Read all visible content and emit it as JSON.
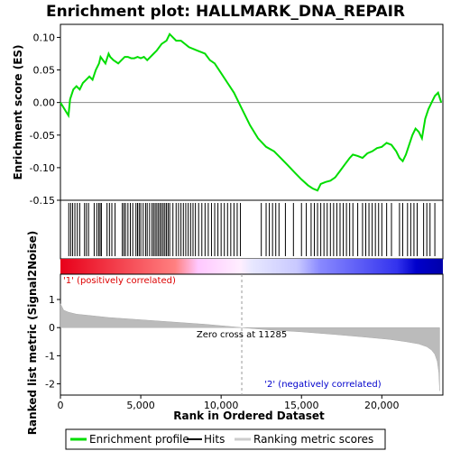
{
  "chart_data": {
    "type": "line",
    "title": "Enrichment plot: HALLMARK_DNA_REPAIR",
    "top_panel": {
      "ylabel": "Enrichment score (ES)",
      "ylim": [
        -0.15,
        0.12
      ],
      "yticks": [
        0.1,
        0.05,
        0.0,
        -0.05,
        -0.1,
        -0.15
      ],
      "ytick_labels": [
        "0.10",
        "0.05",
        "0.00",
        "-0.05",
        "-0.10",
        "-0.15"
      ],
      "series": [
        {
          "name": "Enrichment profile",
          "color": "#00dd00",
          "x": [
            0,
            500,
            600,
            800,
            1000,
            1200,
            1400,
            1600,
            1800,
            2000,
            2200,
            2400,
            2500,
            2800,
            3000,
            3100,
            3300,
            3600,
            3800,
            4000,
            4200,
            4400,
            4600,
            4800,
            5000,
            5200,
            5400,
            5600,
            5800,
            6000,
            6300,
            6600,
            6800,
            7000,
            7200,
            7500,
            8000,
            8500,
            9000,
            9300,
            9600,
            10000,
            10400,
            10800,
            11300,
            11800,
            12300,
            12800,
            13300,
            13700,
            14100,
            14600,
            15000,
            15400,
            15700,
            16000,
            16200,
            16500,
            16800,
            17100,
            17400,
            17700,
            18000,
            18200,
            18500,
            18800,
            19100,
            19400,
            19700,
            20000,
            20300,
            20600,
            20900,
            21100,
            21300,
            21500,
            21700,
            21900,
            22100,
            22300,
            22500,
            22700,
            22900,
            23100,
            23300,
            23500,
            23700
          ],
          "y": [
            0.0,
            -0.02,
            0.005,
            0.02,
            0.025,
            0.02,
            0.03,
            0.035,
            0.04,
            0.035,
            0.05,
            0.06,
            0.07,
            0.06,
            0.075,
            0.07,
            0.065,
            0.06,
            0.065,
            0.07,
            0.07,
            0.068,
            0.068,
            0.07,
            0.068,
            0.07,
            0.065,
            0.07,
            0.075,
            0.08,
            0.09,
            0.095,
            0.105,
            0.1,
            0.095,
            0.095,
            0.085,
            0.08,
            0.075,
            0.065,
            0.06,
            0.045,
            0.03,
            0.015,
            -0.01,
            -0.035,
            -0.055,
            -0.068,
            -0.075,
            -0.085,
            -0.095,
            -0.108,
            -0.118,
            -0.127,
            -0.132,
            -0.135,
            -0.125,
            -0.122,
            -0.12,
            -0.115,
            -0.105,
            -0.095,
            -0.085,
            -0.08,
            -0.082,
            -0.085,
            -0.078,
            -0.075,
            -0.07,
            -0.068,
            -0.062,
            -0.065,
            -0.075,
            -0.085,
            -0.09,
            -0.08,
            -0.065,
            -0.05,
            -0.04,
            -0.045,
            -0.055,
            -0.025,
            -0.01,
            0.0,
            0.01,
            0.015,
            0.0
          ]
        }
      ]
    },
    "hits_panel": {
      "series_name": "Hits",
      "x": [
        520,
        640,
        760,
        900,
        1050,
        1200,
        1500,
        1620,
        1750,
        2100,
        2260,
        2380,
        2470,
        2550,
        2900,
        3050,
        3200,
        3400,
        3850,
        3950,
        4050,
        4200,
        4350,
        4500,
        4700,
        4800,
        4900,
        5000,
        5150,
        5300,
        5400,
        5550,
        5700,
        5800,
        5900,
        6000,
        6100,
        6200,
        6300,
        6400,
        6500,
        6600,
        6700,
        6800,
        7000,
        7200,
        7350,
        7500,
        7650,
        7800,
        7950,
        8100,
        8250,
        8400,
        8600,
        8800,
        9000,
        9200,
        9400,
        9600,
        9800,
        10000,
        10200,
        10400,
        10600,
        10800,
        11000,
        11200,
        12500,
        12800,
        13000,
        13200,
        13400,
        13600,
        14000,
        14500,
        15000,
        15300,
        15600,
        15800,
        16000,
        16200,
        16400,
        16600,
        16800,
        17000,
        17200,
        17400,
        17600,
        17800,
        18000,
        18200,
        18500,
        18800,
        19000,
        19200,
        19400,
        19600,
        19800,
        20000,
        20300,
        20600,
        21100,
        21300,
        21600,
        21800,
        22000,
        22200,
        22600,
        22800,
        23000,
        23300
      ]
    },
    "ranking_bar": {
      "colors_positive": "#ff0000",
      "colors_negative": "#0000ff",
      "zero_cross": 11285
    },
    "bottom_panel": {
      "ylabel": "Ranked list metric (Signal2Noise)",
      "xlabel": "Rank in Ordered Dataset",
      "ylim": [
        -2.4,
        1.9
      ],
      "yticks": [
        1,
        0,
        -1,
        -2
      ],
      "ytick_labels": [
        "1",
        "0",
        "-1",
        "-2"
      ],
      "xlim": [
        0,
        23800
      ],
      "xticks": [
        0,
        5000,
        10000,
        15000,
        20000
      ],
      "xtick_labels": [
        "0",
        "5,000",
        "10,000",
        "15,000",
        "20,000"
      ],
      "metric_x": [
        0,
        200,
        500,
        1000,
        2000,
        3000,
        5000,
        7000,
        9000,
        11285,
        13000,
        15000,
        17000,
        19000,
        20500,
        21500,
        22300,
        22800,
        23100,
        23300,
        23450,
        23550,
        23600
      ],
      "metric_y": [
        0.85,
        0.62,
        0.55,
        0.48,
        0.42,
        0.36,
        0.28,
        0.2,
        0.12,
        0.0,
        -0.08,
        -0.15,
        -0.24,
        -0.34,
        -0.42,
        -0.5,
        -0.58,
        -0.68,
        -0.8,
        -0.95,
        -1.2,
        -1.6,
        -2.25
      ],
      "annotations": {
        "positive_label": "'1' (positively correlated)",
        "negative_label": "'2' (negatively correlated)",
        "zero_cross_label": "Zero cross at 11285"
      }
    },
    "legend": {
      "items": [
        "Enrichment profile",
        "Hits",
        "Ranking metric scores"
      ],
      "placement": "bottom"
    },
    "colors": {
      "profile": "#00dd00",
      "hits": "#000000",
      "metric_fill": "#bbbbbb",
      "pos_label": "#dd0000",
      "neg_label": "#0000cc"
    }
  }
}
